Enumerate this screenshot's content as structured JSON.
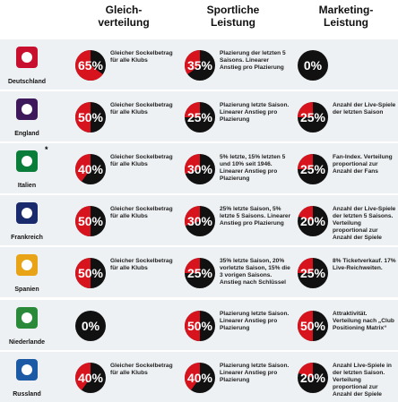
{
  "headers": [
    "Gleich-\nverteilung",
    "Sportliche\nLeistung",
    "Marketing-\nLeistung"
  ],
  "rows": [
    {
      "country": "Deutschland",
      "cells": [
        {
          "value": 65,
          "label": "65%",
          "text": "Gleicher Sockelbetrag für alle Klubs"
        },
        {
          "value": 35,
          "label": "35%",
          "text": "Plazierung der letzten 5 Saisons. Linearer Anstieg pro Plazierung"
        },
        {
          "value": 0,
          "label": "0%"
        }
      ]
    },
    {
      "country": "England",
      "cells": [
        {
          "value": 50,
          "label": "50%",
          "text": "Gleicher Sockelbetrag für alle Klubs"
        },
        {
          "value": 25,
          "label": "25%",
          "text": "Plazierung letzte Saison. Linearer Anstieg pro Plazierung"
        },
        {
          "value": 25,
          "label": "25%",
          "text": "Anzahl der Live-Spiele der letzten Saison"
        }
      ]
    },
    {
      "country": "Italien",
      "note": "*",
      "cells": [
        {
          "value": 40,
          "label": "40%",
          "text": "Gleicher Sockelbetrag für alle Klubs"
        },
        {
          "value": 30,
          "label": "30%",
          "text": "5% letzte, 15% letzten 5 und 10% seit 1946. Linearer Anstieg pro Plazierung"
        },
        {
          "value": 25,
          "label": "25%",
          "text": "Fan-Index. Verteilung proportional zur Anzahl der Fans"
        }
      ]
    },
    {
      "country": "Frankreich",
      "cells": [
        {
          "value": 50,
          "label": "50%",
          "text": "Gleicher Sockelbetrag für alle Klubs"
        },
        {
          "value": 30,
          "label": "30%",
          "text": "25% letzte Saison, 5% letzte 5 Saisons. Linearer Anstieg pro Plazierung"
        },
        {
          "value": 20,
          "label": "20%",
          "text": "Anzahl der Live-Spiele der letzten 5 Saisons. Verteilung proportional zur Anzahl der Spiele"
        }
      ]
    },
    {
      "country": "Spanien",
      "cells": [
        {
          "value": 50,
          "label": "50%",
          "text": "Gleicher Sockelbetrag für alle Klubs"
        },
        {
          "value": 25,
          "label": "25%",
          "text": "35% letzte Saison, 20% vorletzte Saison, 15% die 3 vorigen Saisons. Anstieg nach Schlüssel"
        },
        {
          "value": 25,
          "label": "25%",
          "text": "8% Ticketverkauf. 17% Live-Reichweiten."
        }
      ]
    },
    {
      "country": "Niederlande",
      "cells": [
        {
          "value": 0,
          "label": "0%"
        },
        {
          "value": 50,
          "label": "50%",
          "text": "Plazierung letzte Saison. Linearer Anstieg pro Plazierung"
        },
        {
          "value": 50,
          "label": "50%",
          "text": "Attraktivität. Verteilung nach „Club Positioning Matrix“"
        }
      ]
    },
    {
      "country": "Russland",
      "cells": [
        {
          "value": 40,
          "label": "40%",
          "text": "Gleicher Sockelbetrag für alle Klubs"
        },
        {
          "value": 40,
          "label": "40%",
          "text": "Plazierung letzte Saison. Linearer Anstieg pro Plazierung"
        },
        {
          "value": 20,
          "label": "20%",
          "text": "Anzahl Live-Spiele in der letzten Saison. Verteilung proportional zur Anzahl der Spiele"
        }
      ]
    }
  ]
}
